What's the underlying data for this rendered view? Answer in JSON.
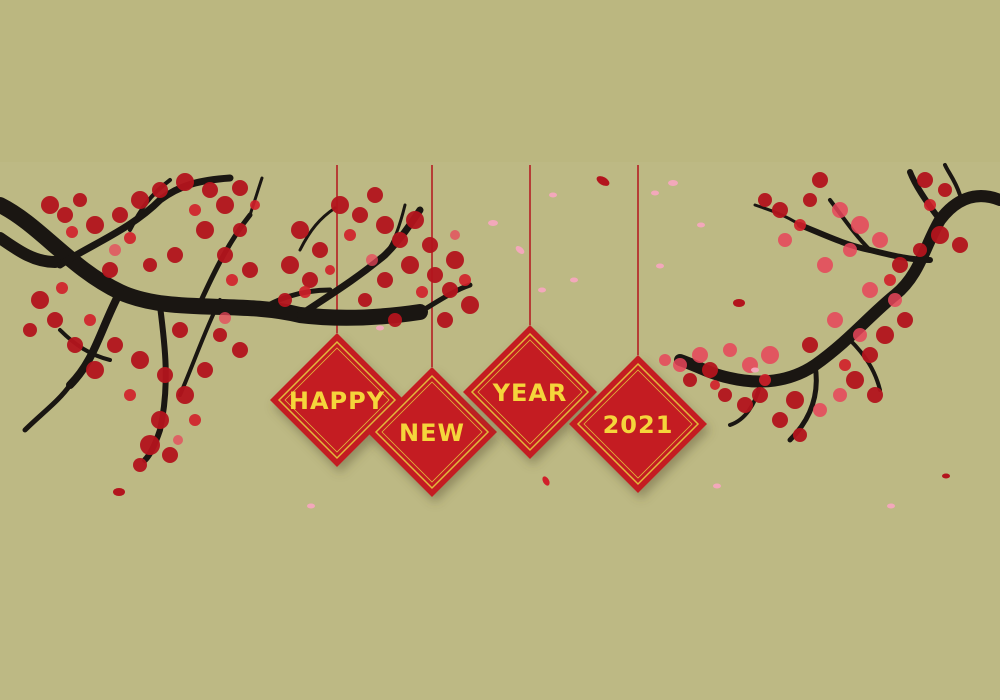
{
  "background": {
    "color": "#bdb984",
    "top_band_color": "#bbb780"
  },
  "colors": {
    "branch": "#1a1612",
    "blossom_dark": "#b3141d",
    "blossom": "#d11f2a",
    "blossom_pink": "#e8455a",
    "petal_light": "#f3a8bb",
    "sign_fill": "#c41a22",
    "sign_border": "#e2b93b",
    "sign_text": "#f5d53a",
    "string": "#b3141d"
  },
  "signs": [
    {
      "id": "happy",
      "text": "HAPPY"
    },
    {
      "id": "new",
      "text": "NEW"
    },
    {
      "id": "year",
      "text": "YEAR"
    },
    {
      "id": "2021",
      "text": "2021"
    }
  ]
}
